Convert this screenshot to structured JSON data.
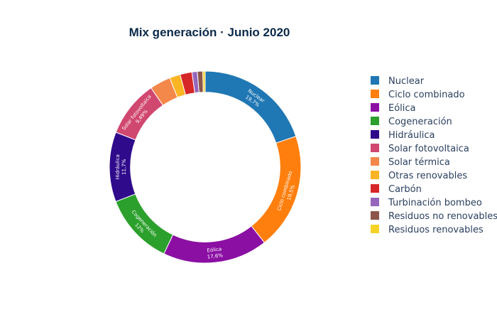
{
  "chart_data": {
    "type": "pie",
    "hole": 0.78,
    "title": "Mix generación · Junio 2020",
    "legend_position": "right",
    "series": [
      {
        "name": "Nuclear",
        "label": "Nuclear",
        "value_text": "19,7%",
        "value": 19.7,
        "color": "#1f77b4"
      },
      {
        "name": "Ciclo combinado",
        "label": "Ciclo combinado",
        "value_text": "19,5%",
        "value": 19.5,
        "color": "#ff7f0e"
      },
      {
        "name": "Eólica",
        "label": "Eólica",
        "value_text": "17,6%",
        "value": 17.6,
        "color": "#8b0fa3"
      },
      {
        "name": "Cogeneración",
        "label": "Cogeneración",
        "value_text": "12%",
        "value": 12.0,
        "color": "#2ca02c"
      },
      {
        "name": "Hidráulica",
        "label": "Hidráulica",
        "value_text": "11,7%",
        "value": 11.7,
        "color": "#2f0b8c"
      },
      {
        "name": "Solar fotovoltaica",
        "label": "Solar fotovoltaica",
        "value_text": "9,49%",
        "value": 9.49,
        "color": "#d0476f"
      },
      {
        "name": "Solar térmica",
        "label": "",
        "value_text": "",
        "value": 3.5,
        "color": "#f4874a"
      },
      {
        "name": "Otras renovables",
        "label": "",
        "value_text": "",
        "value": 1.8,
        "color": "#fbb424"
      },
      {
        "name": "Carbón",
        "label": "",
        "value_text": "",
        "value": 2.0,
        "color": "#d62728"
      },
      {
        "name": "Turbinación bombeo",
        "label": "",
        "value_text": "",
        "value": 0.9,
        "color": "#9467bd"
      },
      {
        "name": "Residuos no renovables",
        "label": "",
        "value_text": "",
        "value": 0.9,
        "color": "#8c564b"
      },
      {
        "name": "Residuos renovables",
        "label": "",
        "value_text": "",
        "value": 0.4,
        "color": "#f5d327"
      }
    ]
  }
}
